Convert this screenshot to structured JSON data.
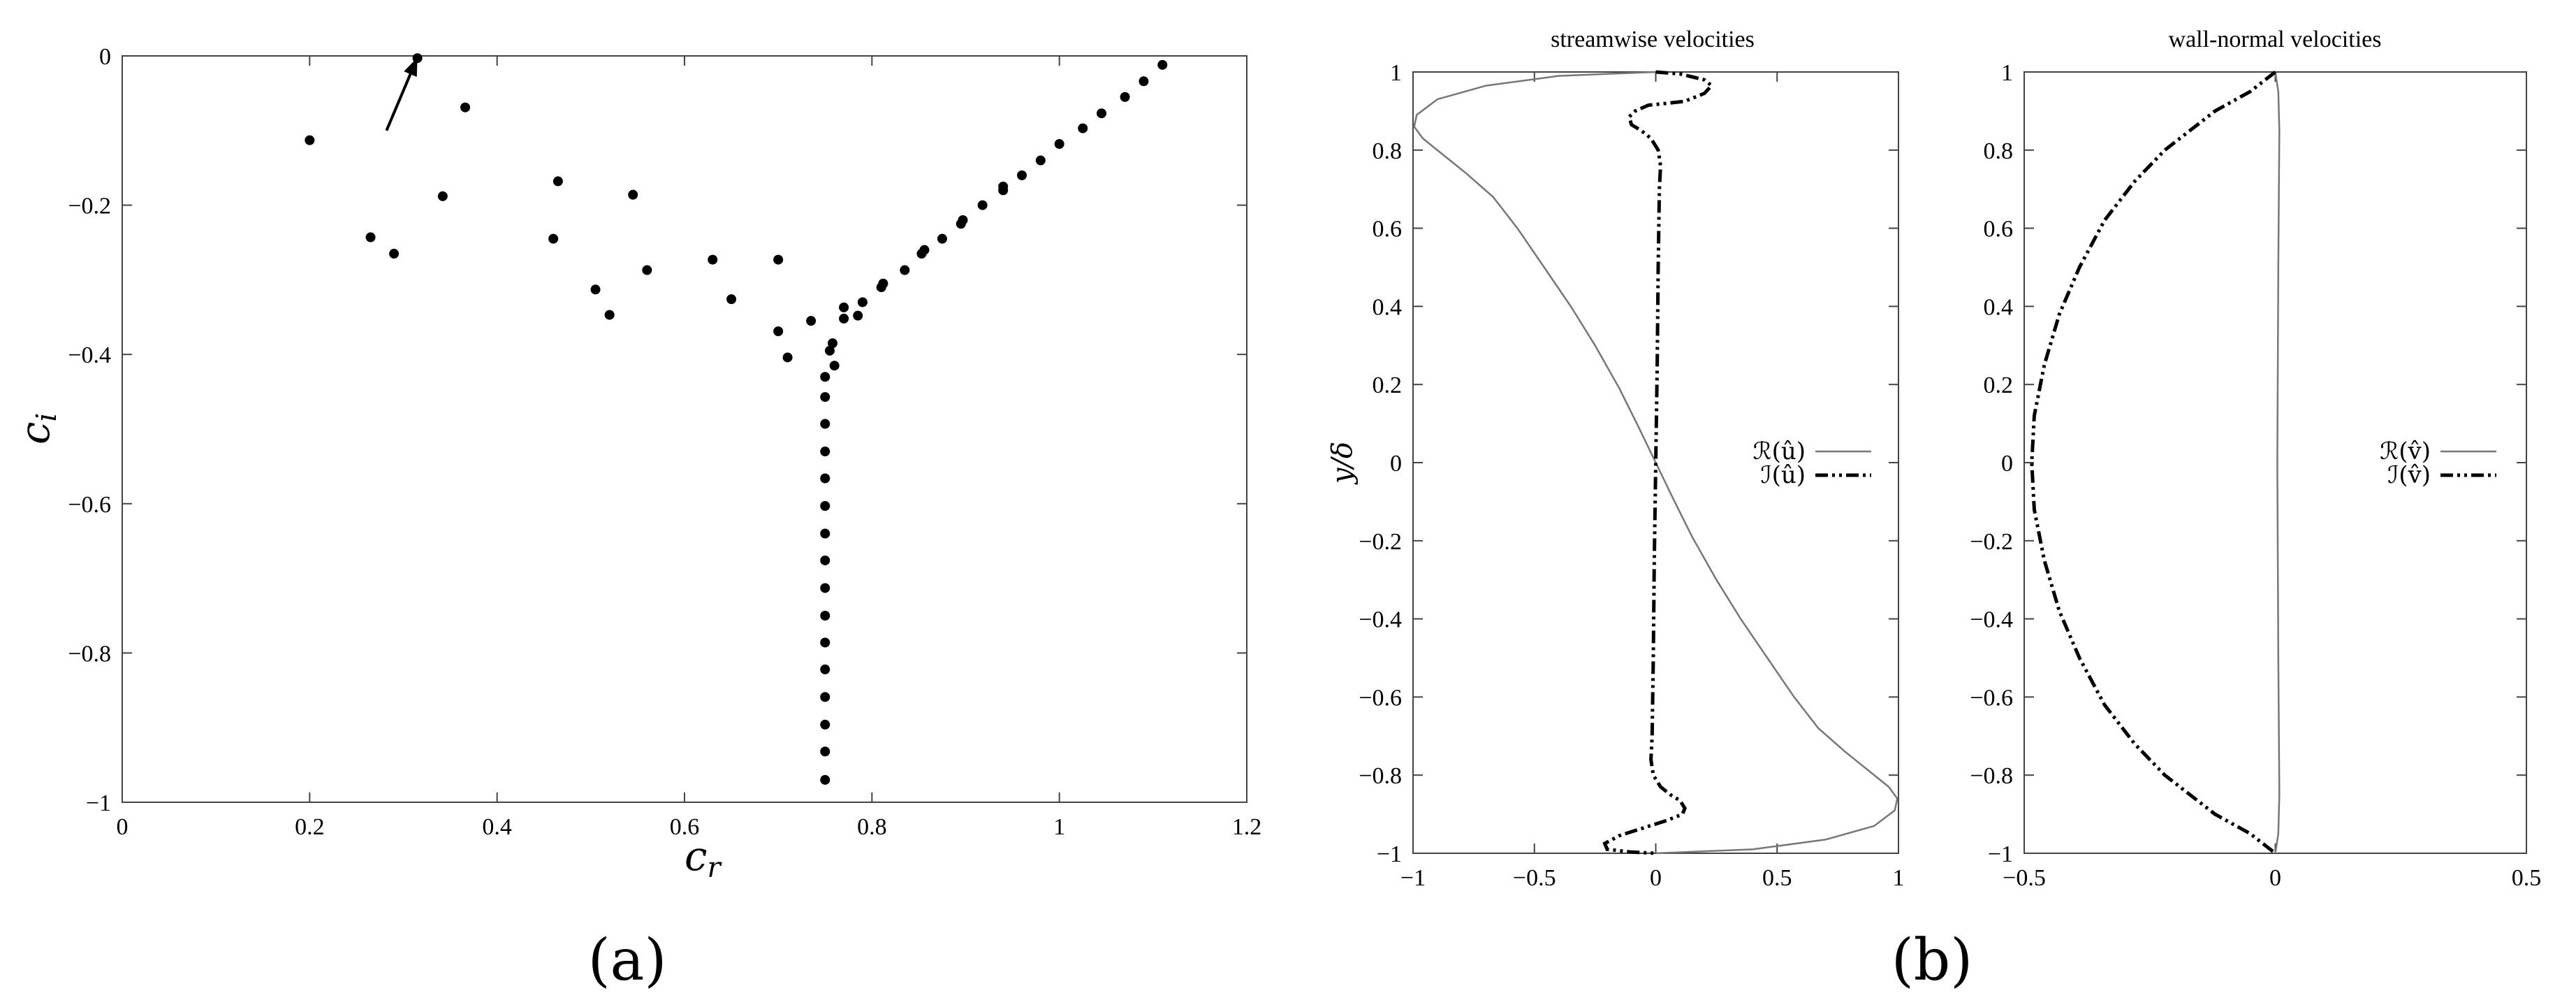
{
  "panel_labels": [
    "(a)",
    "(b)"
  ],
  "chart_data": [
    {
      "type": "scatter",
      "xlabel": "c_r",
      "ylabel": "c_i",
      "xlim": [
        0,
        1.2
      ],
      "ylim": [
        -1,
        0
      ],
      "xticks": [
        "0",
        "0.2",
        "0.4",
        "0.6",
        "0.8",
        "1",
        "1.2"
      ],
      "yticks": [
        "0",
        "−0.2",
        "−0.4",
        "−0.6",
        "−0.8",
        "−1"
      ],
      "arrow": {
        "from": [
          0.282,
          -0.1
        ],
        "to": [
          0.315,
          -0.002
        ]
      },
      "points": [
        [
          0.2,
          -0.113
        ],
        [
          0.265,
          -0.243
        ],
        [
          0.29,
          -0.265
        ],
        [
          0.315,
          -0.003
        ],
        [
          0.342,
          -0.188
        ],
        [
          0.366,
          -0.069
        ],
        [
          0.46,
          -0.245
        ],
        [
          0.465,
          -0.168
        ],
        [
          0.505,
          -0.313
        ],
        [
          0.52,
          -0.347
        ],
        [
          0.545,
          -0.186
        ],
        [
          0.56,
          -0.287
        ],
        [
          0.63,
          -0.273
        ],
        [
          0.65,
          -0.326
        ],
        [
          0.7,
          -0.273
        ],
        [
          0.7,
          -0.369
        ],
        [
          0.71,
          -0.404
        ],
        [
          0.735,
          -0.355
        ],
        [
          0.75,
          -0.43
        ],
        [
          0.755,
          -0.395
        ],
        [
          0.758,
          -0.385
        ],
        [
          0.76,
          -0.415
        ],
        [
          0.77,
          -0.337
        ],
        [
          0.77,
          -0.352
        ],
        [
          0.785,
          -0.348
        ],
        [
          0.79,
          -0.33
        ],
        [
          0.81,
          -0.31
        ],
        [
          0.812,
          -0.305
        ],
        [
          0.835,
          -0.287
        ],
        [
          0.853,
          -0.265
        ],
        [
          0.856,
          -0.26
        ],
        [
          0.875,
          -0.245
        ],
        [
          0.895,
          -0.225
        ],
        [
          0.897,
          -0.22
        ],
        [
          0.918,
          -0.2
        ],
        [
          0.94,
          -0.18
        ],
        [
          0.94,
          -0.175
        ],
        [
          0.96,
          -0.16
        ],
        [
          0.98,
          -0.14
        ],
        [
          1.0,
          -0.118
        ],
        [
          1.025,
          -0.097
        ],
        [
          1.045,
          -0.077
        ],
        [
          1.07,
          -0.055
        ],
        [
          1.09,
          -0.034
        ],
        [
          1.11,
          -0.012
        ],
        [
          0.75,
          -0.457
        ],
        [
          0.75,
          -0.493
        ],
        [
          0.75,
          -0.53
        ],
        [
          0.75,
          -0.566
        ],
        [
          0.75,
          -0.603
        ],
        [
          0.75,
          -0.64
        ],
        [
          0.75,
          -0.676
        ],
        [
          0.75,
          -0.713
        ],
        [
          0.75,
          -0.75
        ],
        [
          0.75,
          -0.786
        ],
        [
          0.75,
          -0.822
        ],
        [
          0.75,
          -0.859
        ],
        [
          0.75,
          -0.896
        ],
        [
          0.75,
          -0.932
        ],
        [
          0.75,
          -0.97
        ]
      ]
    },
    {
      "type": "line",
      "title": "streamwise velocities",
      "ylabel": "y/δ",
      "xlim": [
        -1,
        1
      ],
      "ylim": [
        -1,
        1
      ],
      "xticks": [
        "−1",
        "−0.5",
        "0",
        "0.5",
        "1"
      ],
      "yticks": [
        "1",
        "0.8",
        "0.6",
        "0.4",
        "0.2",
        "0",
        "−0.2",
        "−0.4",
        "−0.6",
        "−0.8",
        "−1"
      ],
      "legend_position": "right-middle",
      "series": [
        {
          "name": "ℛ(û)",
          "style": "solid",
          "points": [
            [
              0,
              1
            ],
            [
              -0.4,
              0.99
            ],
            [
              -0.7,
              0.965
            ],
            [
              -0.9,
              0.93
            ],
            [
              -0.985,
              0.89
            ],
            [
              -0.995,
              0.86
            ],
            [
              -0.96,
              0.83
            ],
            [
              -0.88,
              0.79
            ],
            [
              -0.78,
              0.74
            ],
            [
              -0.67,
              0.68
            ],
            [
              -0.57,
              0.6
            ],
            [
              -0.46,
              0.5
            ],
            [
              -0.35,
              0.4
            ],
            [
              -0.25,
              0.3
            ],
            [
              -0.15,
              0.19
            ],
            [
              -0.07,
              0.09
            ],
            [
              0,
              0
            ],
            [
              0.07,
              -0.09
            ],
            [
              0.15,
              -0.19
            ],
            [
              0.25,
              -0.3
            ],
            [
              0.35,
              -0.4
            ],
            [
              0.46,
              -0.5
            ],
            [
              0.57,
              -0.6
            ],
            [
              0.67,
              -0.68
            ],
            [
              0.78,
              -0.74
            ],
            [
              0.88,
              -0.79
            ],
            [
              0.96,
              -0.83
            ],
            [
              0.995,
              -0.86
            ],
            [
              0.985,
              -0.89
            ],
            [
              0.9,
              -0.93
            ],
            [
              0.7,
              -0.965
            ],
            [
              0.4,
              -0.99
            ],
            [
              0,
              -1
            ]
          ]
        },
        {
          "name": "ℐ(û)",
          "style": "dash-dot-dot",
          "points": [
            [
              0,
              1
            ],
            [
              0.1,
              0.995
            ],
            [
              0.2,
              0.98
            ],
            [
              0.23,
              0.965
            ],
            [
              0.2,
              0.945
            ],
            [
              0.12,
              0.925
            ],
            [
              0.05,
              0.92
            ],
            [
              -0.03,
              0.915
            ],
            [
              -0.085,
              0.9
            ],
            [
              -0.11,
              0.885
            ],
            [
              -0.1,
              0.865
            ],
            [
              -0.06,
              0.85
            ],
            [
              -0.02,
              0.83
            ],
            [
              0.01,
              0.8
            ],
            [
              0.02,
              0.76
            ],
            [
              0.015,
              0.7
            ],
            [
              0.01,
              0.5
            ],
            [
              0.006,
              0.25
            ],
            [
              0,
              0
            ],
            [
              -0.006,
              -0.25
            ],
            [
              -0.01,
              -0.5
            ],
            [
              -0.015,
              -0.7
            ],
            [
              -0.02,
              -0.76
            ],
            [
              -0.01,
              -0.8
            ],
            [
              0.02,
              -0.83
            ],
            [
              0.06,
              -0.85
            ],
            [
              0.1,
              -0.865
            ],
            [
              0.12,
              -0.885
            ],
            [
              0.11,
              -0.9
            ],
            [
              0.05,
              -0.915
            ],
            [
              -0.05,
              -0.935
            ],
            [
              -0.15,
              -0.955
            ],
            [
              -0.21,
              -0.975
            ],
            [
              -0.2,
              -0.99
            ],
            [
              -0.1,
              -0.997
            ],
            [
              0,
              -1
            ]
          ]
        }
      ]
    },
    {
      "type": "line",
      "title": "wall-normal velocities",
      "xlim": [
        -0.5,
        0.5
      ],
      "ylim": [
        -1,
        1
      ],
      "xticks": [
        "−0.5",
        "0",
        "0.5"
      ],
      "yticks": [
        "1",
        "0.8",
        "0.6",
        "0.4",
        "0.2",
        "0",
        "−0.2",
        "−0.4",
        "−0.6",
        "−0.8",
        "−1"
      ],
      "legend_position": "right-middle",
      "series": [
        {
          "name": "ℛ(v̂)",
          "style": "solid",
          "points": [
            [
              0,
              1
            ],
            [
              0.006,
              0.95
            ],
            [
              0.008,
              0.85
            ],
            [
              0.006,
              0.5
            ],
            [
              0.004,
              0
            ],
            [
              0.006,
              -0.5
            ],
            [
              0.008,
              -0.85
            ],
            [
              0.006,
              -0.95
            ],
            [
              0,
              -1
            ]
          ]
        },
        {
          "name": "ℐ(v̂)",
          "style": "dash-dot-dot",
          "points": [
            [
              0,
              1
            ],
            [
              -0.05,
              0.95
            ],
            [
              -0.12,
              0.9
            ],
            [
              -0.17,
              0.85
            ],
            [
              -0.22,
              0.8
            ],
            [
              -0.28,
              0.72
            ],
            [
              -0.34,
              0.62
            ],
            [
              -0.39,
              0.5
            ],
            [
              -0.43,
              0.38
            ],
            [
              -0.46,
              0.25
            ],
            [
              -0.48,
              0.12
            ],
            [
              -0.485,
              0
            ],
            [
              -0.48,
              -0.12
            ],
            [
              -0.46,
              -0.25
            ],
            [
              -0.43,
              -0.38
            ],
            [
              -0.39,
              -0.5
            ],
            [
              -0.34,
              -0.62
            ],
            [
              -0.28,
              -0.72
            ],
            [
              -0.22,
              -0.8
            ],
            [
              -0.17,
              -0.85
            ],
            [
              -0.12,
              -0.9
            ],
            [
              -0.05,
              -0.95
            ],
            [
              0,
              -1
            ]
          ]
        }
      ]
    }
  ]
}
